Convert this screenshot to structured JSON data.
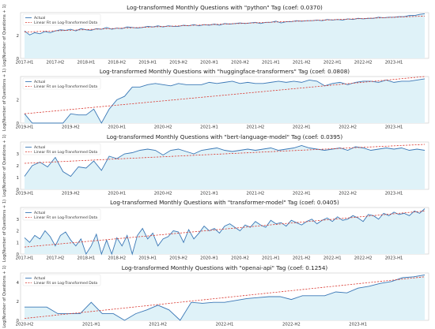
{
  "chart_data": [
    {
      "type": "line",
      "title": "Log-transformed Monthly Questions with \"python\" Tag (coef: 0.0370)",
      "ylabel": "Log(Number of Questions + 1)",
      "x_start": "2017-01",
      "ylim": [
        0,
        4
      ],
      "yticks": [
        "0",
        "2"
      ],
      "xticks": [
        {
          "label": "2017-H1",
          "month": 0
        },
        {
          "label": "2017-H2",
          "month": 6
        },
        {
          "label": "2018-H1",
          "month": 12
        },
        {
          "label": "2018-H2",
          "month": 18
        },
        {
          "label": "2019-H1",
          "month": 24
        },
        {
          "label": "2019-H2",
          "month": 30
        },
        {
          "label": "2020-H1",
          "month": 36
        },
        {
          "label": "2020-H2",
          "month": 42
        },
        {
          "label": "2021-H1",
          "month": 48
        },
        {
          "label": "2021-H2",
          "month": 54
        },
        {
          "label": "2022-H1",
          "month": 60
        },
        {
          "label": "2022-H2",
          "month": 66
        },
        {
          "label": "2023-H1",
          "month": 72
        }
      ],
      "series": [
        {
          "name": "Actual",
          "values": [
            2.4,
            2.05,
            2.25,
            2.15,
            2.35,
            2.25,
            2.4,
            2.5,
            2.45,
            2.55,
            2.4,
            2.6,
            2.5,
            2.45,
            2.6,
            2.55,
            2.7,
            2.55,
            2.65,
            2.6,
            2.75,
            2.7,
            2.65,
            2.7,
            2.8,
            2.75,
            2.85,
            2.75,
            2.85,
            2.8,
            2.8,
            2.9,
            2.85,
            2.95,
            2.85,
            2.95,
            2.9,
            3.0,
            2.9,
            3.05,
            3.0,
            3.05,
            3.1,
            3.05,
            3.1,
            3.15,
            3.05,
            3.15,
            3.15,
            3.25,
            3.1,
            3.2,
            3.2,
            3.3,
            3.25,
            3.3,
            3.3,
            3.35,
            3.3,
            3.4,
            3.35,
            3.4,
            3.35,
            3.45,
            3.4,
            3.5,
            3.45,
            3.5,
            3.5,
            3.6,
            3.55,
            3.6,
            3.6,
            3.65,
            3.65,
            3.75,
            3.75,
            3.85,
            3.9
          ]
        },
        {
          "name": "Linear Fit on Log-Transformed Data",
          "line_from": 2.3,
          "line_to": 3.7
        }
      ]
    },
    {
      "type": "line",
      "title": "Log-transformed Monthly Questions with \"huggingface-transformers\" Tag (coef: 0.0808)",
      "ylabel": "Log(Number of Questions + 1)",
      "x_start": "2019-01",
      "ylim": [
        0,
        4
      ],
      "yticks": [
        "0",
        "2"
      ],
      "xticks": [
        {
          "label": "2019-H1",
          "month": 0
        },
        {
          "label": "2019-H2",
          "month": 6
        },
        {
          "label": "2020-H1",
          "month": 12
        },
        {
          "label": "2020-H2",
          "month": 18
        },
        {
          "label": "2021-H1",
          "month": 24
        },
        {
          "label": "2021-H2",
          "month": 30
        },
        {
          "label": "2022-H1",
          "month": 36
        },
        {
          "label": "2022-H2",
          "month": 42
        },
        {
          "label": "2023-H1",
          "month": 48
        }
      ],
      "series": [
        {
          "name": "Actual",
          "values": [
            0.8,
            0.0,
            0.0,
            0.0,
            0.0,
            0.0,
            0.8,
            0.7,
            0.7,
            1.2,
            0.0,
            1.2,
            2.0,
            2.3,
            3.1,
            3.1,
            3.3,
            3.4,
            3.3,
            3.2,
            3.4,
            3.3,
            3.3,
            3.3,
            3.5,
            3.4,
            3.5,
            3.6,
            3.4,
            3.5,
            3.4,
            3.4,
            3.5,
            3.6,
            3.5,
            3.6,
            3.5,
            3.7,
            3.6,
            3.2,
            3.4,
            3.5,
            3.3,
            3.5,
            3.6,
            3.6,
            3.5,
            3.7,
            3.5,
            3.6,
            3.6,
            3.7,
            3.8
          ]
        },
        {
          "name": "Linear Fit on Log-Transformed Data",
          "line_from": 0.8,
          "line_to": 4.0
        }
      ]
    },
    {
      "type": "line",
      "title": "Log-transformed Monthly Questions with \"bert-language-model\" Tag (coef: 0.0395)",
      "ylabel": "Log(Number of Questions + 1)",
      "x_start": "2019-01",
      "ylim": [
        0,
        4
      ],
      "yticks": [
        "0",
        "1",
        "2",
        "3"
      ],
      "xticks": [
        {
          "label": "2019-H1",
          "month": 0
        },
        {
          "label": "2019-H2",
          "month": 6
        },
        {
          "label": "2020-H1",
          "month": 12
        },
        {
          "label": "2020-H2",
          "month": 18
        },
        {
          "label": "2021-H1",
          "month": 24
        },
        {
          "label": "2021-H2",
          "month": 30
        },
        {
          "label": "2022-H1",
          "month": 36
        },
        {
          "label": "2022-H2",
          "month": 42
        },
        {
          "label": "2023-H1",
          "month": 48
        }
      ],
      "series": [
        {
          "name": "Actual",
          "values": [
            1.1,
            2.0,
            2.3,
            1.9,
            2.7,
            1.5,
            1.1,
            1.9,
            1.8,
            2.4,
            1.6,
            2.8,
            2.6,
            3.0,
            3.1,
            3.3,
            3.4,
            3.3,
            2.9,
            3.3,
            3.4,
            3.2,
            3.0,
            3.3,
            3.4,
            3.5,
            3.3,
            3.2,
            3.3,
            3.4,
            3.3,
            3.4,
            3.5,
            3.3,
            3.4,
            3.5,
            3.7,
            3.5,
            3.4,
            3.3,
            3.4,
            3.5,
            3.3,
            3.6,
            3.5,
            3.3,
            3.4,
            3.5,
            3.4,
            3.5,
            3.3,
            3.4,
            3.3
          ]
        },
        {
          "name": "Linear Fit on Log-Transformed Data",
          "line_from": 2.2,
          "line_to": 3.8
        }
      ]
    },
    {
      "type": "line",
      "title": "Log-transformed Monthly Questions with \"transformer-model\" Tag (coef: 0.0405)",
      "ylabel": "Log(Number of Questions + 1)",
      "x_start": "2017-01",
      "ylim": [
        0,
        4
      ],
      "yticks": [
        "0",
        "1",
        "2",
        "3"
      ],
      "xticks": [
        {
          "label": "2017-H1",
          "month": 0
        },
        {
          "label": "2017-H2",
          "month": 6
        },
        {
          "label": "2018-H1",
          "month": 12
        },
        {
          "label": "2018-H2",
          "month": 18
        },
        {
          "label": "2019-H1",
          "month": 24
        },
        {
          "label": "2019-H2",
          "month": 30
        },
        {
          "label": "2020-H1",
          "month": 36
        },
        {
          "label": "2020-H2",
          "month": 42
        },
        {
          "label": "2021-H1",
          "month": 48
        },
        {
          "label": "2021-H2",
          "month": 54
        },
        {
          "label": "2022-H1",
          "month": 60
        },
        {
          "label": "2022-H2",
          "month": 66
        },
        {
          "label": "2023-H1",
          "month": 72
        }
      ],
      "series": [
        {
          "name": "Actual",
          "values": [
            1.4,
            1.0,
            1.6,
            1.3,
            2.0,
            1.5,
            0.7,
            1.6,
            1.9,
            1.2,
            0.7,
            1.3,
            0.0,
            0.7,
            1.7,
            0.0,
            1.2,
            0.0,
            1.4,
            0.7,
            1.6,
            0.0,
            1.6,
            2.2,
            1.3,
            1.8,
            0.7,
            1.3,
            1.5,
            2.0,
            1.9,
            1.0,
            2.1,
            1.3,
            1.8,
            2.4,
            2.0,
            2.2,
            1.8,
            2.4,
            2.6,
            2.3,
            2.0,
            2.5,
            2.3,
            2.8,
            2.5,
            2.3,
            2.9,
            2.6,
            2.7,
            2.4,
            2.9,
            2.7,
            2.5,
            2.8,
            3.0,
            2.6,
            2.9,
            3.1,
            2.8,
            3.2,
            2.9,
            3.0,
            3.3,
            3.1,
            2.8,
            3.4,
            3.3,
            3.0,
            3.5,
            3.3,
            3.6,
            3.4,
            3.5,
            3.3,
            3.7,
            3.5,
            3.9
          ]
        },
        {
          "name": "Linear Fit on Log-Transformed Data",
          "line_from": 0.6,
          "line_to": 3.7
        }
      ]
    },
    {
      "type": "line",
      "title": "Log-transformed Monthly Questions with \"openai-api\" Tag (coef: 0.1254)",
      "ylabel": "Log(Number of Questions + 1)",
      "x_start": "2020-07",
      "ylim": [
        0,
        5
      ],
      "yticks": [
        "0",
        "2",
        "4"
      ],
      "xticks": [
        {
          "label": "2020-H2",
          "month": 0
        },
        {
          "label": "2021-H1",
          "month": 6
        },
        {
          "label": "2021-H2",
          "month": 12
        },
        {
          "label": "2022-H1",
          "month": 18
        },
        {
          "label": "2022-H2",
          "month": 24
        },
        {
          "label": "2023-H1",
          "month": 30
        }
      ],
      "series": [
        {
          "name": "Actual",
          "values": [
            1.4,
            1.4,
            1.4,
            0.7,
            0.7,
            0.7,
            1.9,
            0.7,
            0.7,
            0.0,
            0.7,
            1.1,
            1.6,
            1.1,
            0.0,
            1.9,
            1.8,
            1.9,
            1.9,
            2.1,
            2.3,
            2.4,
            2.5,
            2.5,
            2.2,
            2.6,
            2.6,
            2.6,
            3.0,
            2.9,
            3.4,
            3.6,
            3.9,
            4.1,
            4.5,
            4.6,
            4.8
          ]
        },
        {
          "name": "Linear Fit on Log-Transformed Data",
          "line_from": 0.2,
          "line_to": 4.6
        }
      ]
    }
  ]
}
